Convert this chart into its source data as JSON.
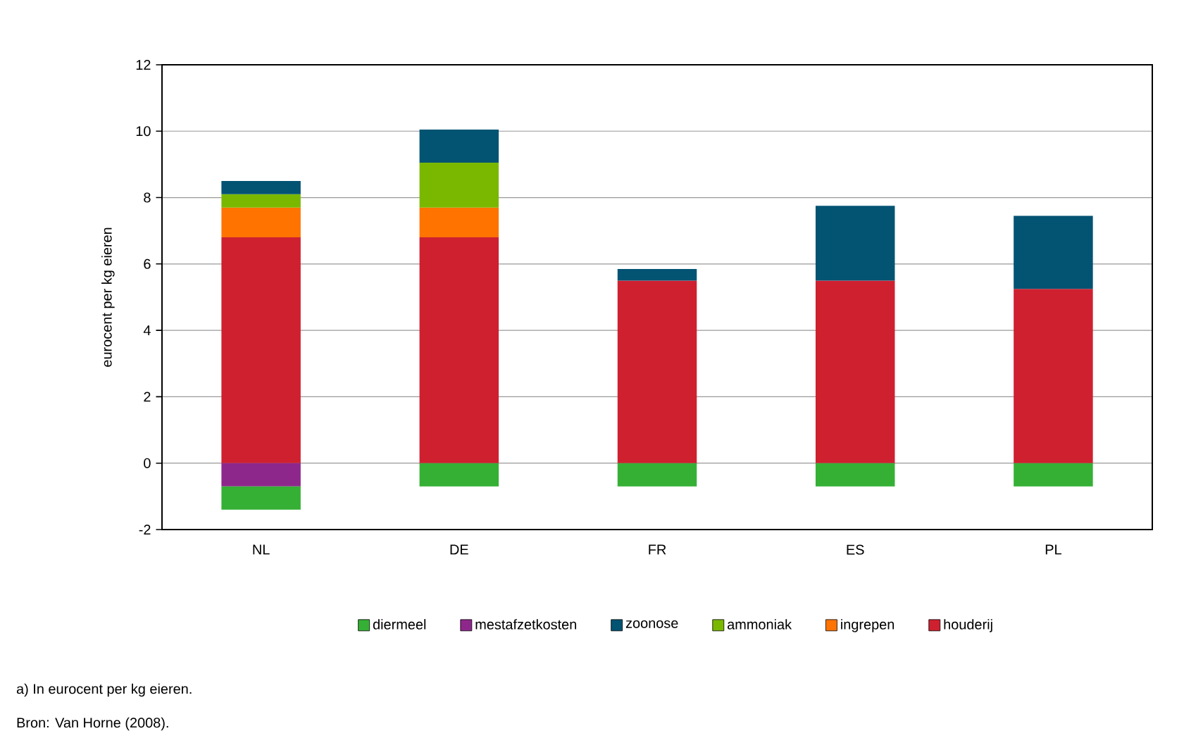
{
  "chart_data": {
    "type": "bar",
    "stacked": true,
    "ylabel": "eurocent per kg eieren",
    "categories": [
      "NL",
      "DE",
      "FR",
      "ES",
      "PL"
    ],
    "series": [
      {
        "name": "houderij",
        "color": "#cf2030",
        "values": [
          6.8,
          6.8,
          5.5,
          5.5,
          5.25
        ]
      },
      {
        "name": "ingrepen",
        "color": "#ff7300",
        "values": [
          0.9,
          0.9,
          null,
          null,
          null
        ]
      },
      {
        "name": "ammoniak",
        "color": "#7ab800",
        "values": [
          0.4,
          1.35,
          null,
          null,
          null
        ]
      },
      {
        "name": "zoonose",
        "color": "#035373",
        "values": [
          0.4,
          1.0,
          0.35,
          2.25,
          2.2
        ]
      },
      {
        "name": "mestafzetkosten",
        "color": "#8e278c",
        "values": [
          -0.7,
          null,
          null,
          null,
          null
        ]
      },
      {
        "name": "diermeel",
        "color": "#35b035",
        "values": [
          -0.7,
          -0.7,
          -0.7,
          -0.7,
          -0.7
        ]
      }
    ],
    "ylim": [
      -2,
      12
    ],
    "yticks": [
      -2,
      0,
      2,
      4,
      6,
      8,
      10,
      12
    ],
    "grid": "y",
    "legend": "bottom",
    "annotations": [
      "a) In eurocent per kg eieren.",
      "Bron: Van Horne (2008)."
    ]
  }
}
